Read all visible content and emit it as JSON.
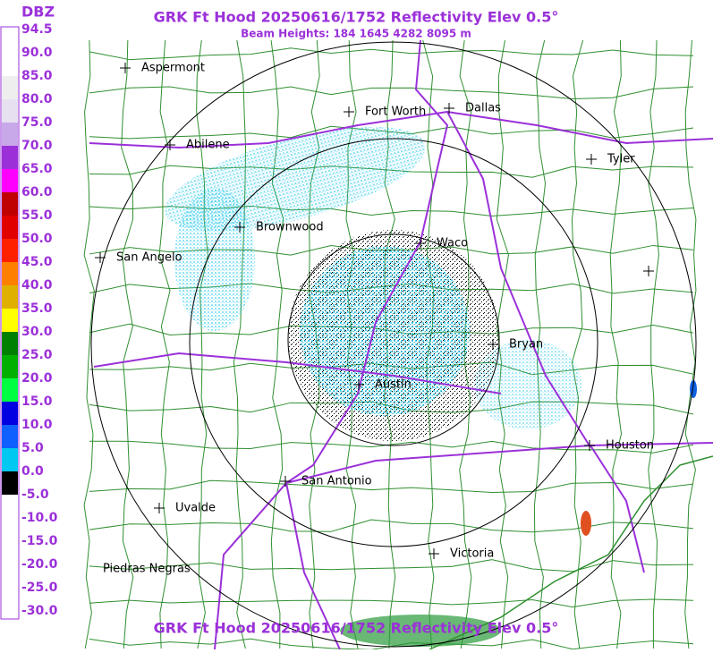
{
  "header": {
    "title": "GRK Ft Hood 20250616/1752 Reflectivity Elev 0.5°",
    "subtitle": "Beam Heights: 184 1645 4282 8095 m"
  },
  "legend": {
    "title": "DBZ",
    "labels": [
      "94.5",
      "90.0",
      "85.0",
      "80.0",
      "75.0",
      "70.0",
      "65.0",
      "60.0",
      "55.0",
      "50.0",
      "45.0",
      "40.0",
      "35.0",
      "30.0",
      "25.0",
      "20.0",
      "15.0",
      "10.0",
      "5.0",
      "0.0",
      "-5.0",
      "-10.0",
      "-15.0",
      "-20.0",
      "-25.0",
      "-30.0"
    ]
  },
  "cities": [
    "Aspermont",
    "Fort Worth",
    "Dallas",
    "Abilene",
    "Tyler",
    "Brownwood",
    "Waco",
    "San Angelo",
    "Bryan",
    "Austin",
    "Houston",
    "San Antonio",
    "Uvalde",
    "Victoria",
    "Piedras Negras"
  ],
  "footer": {
    "title": "GRK Ft Hood 20250616/1752 Reflectivity Elev 0.5°"
  }
}
